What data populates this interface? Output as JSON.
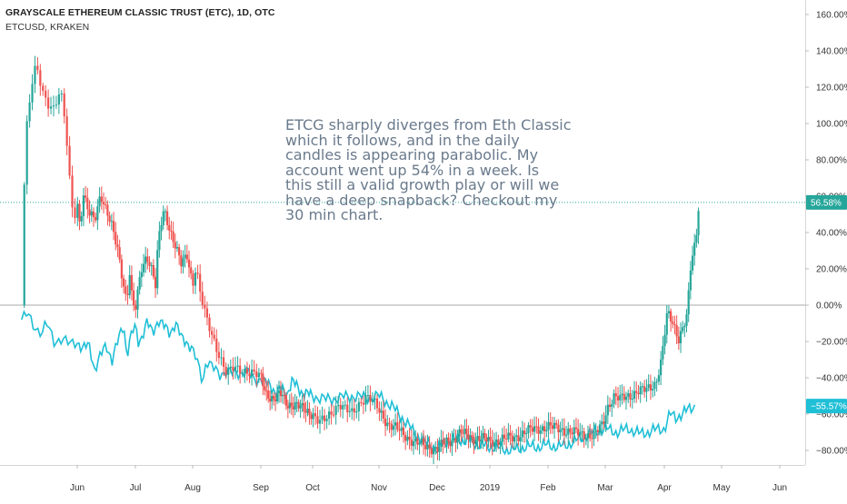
{
  "header": {
    "title": "GRAYSCALE ETHEREUM CLASSIC TRUST (ETC), 1D, OTC",
    "subtitle": "ETCUSD, KRAKEN"
  },
  "annotation": {
    "lines": [
      "ETCG sharply diverges from Eth Classic",
      "which it follows, and in the daily",
      "candles is appearing parabolic. My",
      "account went up 54% in a week. Is",
      "this still a valid growth play or will we",
      "have a deep snapback? Checkout my",
      "30 min chart."
    ]
  },
  "colors": {
    "up": "#26a69a",
    "down": "#ef5350",
    "comparison": "#1fbfd6",
    "text": "#333333",
    "grid": "#e6e6e6"
  },
  "chart_data": {
    "type": "candlestick",
    "series": [
      {
        "name": "GRAYSCALE ETHEREUM CLASSIC TRUST (ETC)",
        "style": "candles",
        "last_value_label": "56.58%"
      },
      {
        "name": "ETCUSD, KRAKEN",
        "style": "line",
        "last_value_label": "−55.57%"
      }
    ],
    "y_axis": {
      "unit": "%",
      "range": [
        -92,
        164
      ],
      "tick_labels": [
        "160.00%",
        "140.00%",
        "120.00%",
        "100.00%",
        "80.00%",
        "60.00%",
        "40.00%",
        "20.00%",
        "0.00%",
        "−20.00%",
        "−40.00%",
        "−60.00%",
        "−80.00%"
      ],
      "tick_values": [
        160,
        140,
        120,
        100,
        80,
        60,
        40,
        20,
        0,
        -20,
        -40,
        -60,
        -80
      ],
      "zero_line": true
    },
    "x_axis": {
      "labels": [
        "Jun",
        "Jul",
        "Aug",
        "Sep",
        "Oct",
        "Nov",
        "Dec",
        "2019",
        "Feb",
        "Mar",
        "Apr",
        "May",
        "Jun"
      ],
      "label_month_index": [
        1,
        2,
        3,
        4,
        5,
        6,
        7,
        8,
        9,
        10,
        11,
        12,
        13
      ],
      "start_month_index": 0.28,
      "end_month_index": 13.0
    },
    "grid": false,
    "price_line": 56.58,
    "etcg_path": [
      [
        0.28,
        0
      ],
      [
        0.3,
        50
      ],
      [
        0.34,
        95
      ],
      [
        0.4,
        118
      ],
      [
        0.47,
        132
      ],
      [
        0.55,
        118
      ],
      [
        0.62,
        112
      ],
      [
        0.7,
        108
      ],
      [
        0.78,
        118
      ],
      [
        0.85,
        98
      ],
      [
        0.9,
        70
      ],
      [
        0.95,
        47
      ],
      [
        1.0,
        58
      ],
      [
        1.05,
        42
      ],
      [
        1.1,
        62
      ],
      [
        1.15,
        55
      ],
      [
        1.2,
        50
      ],
      [
        1.3,
        47
      ],
      [
        1.4,
        62
      ],
      [
        1.5,
        52
      ],
      [
        1.6,
        42
      ],
      [
        1.7,
        30
      ],
      [
        1.78,
        15
      ],
      [
        1.85,
        2
      ],
      [
        1.9,
        18
      ],
      [
        1.95,
        0
      ],
      [
        2.0,
        -3
      ],
      [
        2.1,
        20
      ],
      [
        2.2,
        28
      ],
      [
        2.3,
        18
      ],
      [
        2.35,
        10
      ],
      [
        2.4,
        35
      ],
      [
        2.45,
        45
      ],
      [
        2.5,
        53
      ],
      [
        2.55,
        48
      ],
      [
        2.6,
        42
      ],
      [
        2.7,
        32
      ],
      [
        2.8,
        22
      ],
      [
        2.9,
        28
      ],
      [
        3.0,
        12
      ],
      [
        3.05,
        22
      ],
      [
        3.1,
        8
      ],
      [
        3.2,
        -8
      ],
      [
        3.3,
        -18
      ],
      [
        3.4,
        -28
      ],
      [
        3.5,
        -38
      ],
      [
        3.6,
        -35
      ],
      [
        3.8,
        -36
      ],
      [
        4.0,
        -40
      ],
      [
        4.1,
        -48
      ],
      [
        4.25,
        -52
      ],
      [
        4.4,
        -49
      ],
      [
        4.5,
        -54
      ],
      [
        4.65,
        -55
      ],
      [
        4.8,
        -57
      ],
      [
        4.9,
        -58
      ],
      [
        5.0,
        -60
      ],
      [
        5.1,
        -65
      ],
      [
        5.2,
        -63
      ],
      [
        5.3,
        -58
      ],
      [
        5.4,
        -54
      ],
      [
        5.5,
        -58
      ],
      [
        5.6,
        -60
      ],
      [
        5.7,
        -54
      ],
      [
        5.8,
        -50
      ],
      [
        5.9,
        -53
      ],
      [
        6.0,
        -58
      ],
      [
        6.15,
        -65
      ],
      [
        6.3,
        -68
      ],
      [
        6.45,
        -72
      ],
      [
        6.6,
        -75
      ],
      [
        6.8,
        -78
      ],
      [
        7.0,
        -79
      ],
      [
        7.15,
        -76
      ],
      [
        7.3,
        -74
      ],
      [
        7.45,
        -70
      ],
      [
        7.55,
        -72
      ],
      [
        7.7,
        -73
      ],
      [
        7.9,
        -74
      ],
      [
        8.0,
        -75
      ],
      [
        8.2,
        -74
      ],
      [
        8.4,
        -73
      ],
      [
        8.6,
        -70
      ],
      [
        8.8,
        -68
      ],
      [
        9.0,
        -67
      ],
      [
        9.2,
        -68
      ],
      [
        9.4,
        -70
      ],
      [
        9.6,
        -71
      ],
      [
        9.8,
        -72
      ],
      [
        9.95,
        -66
      ],
      [
        10.05,
        -55
      ],
      [
        10.15,
        -50
      ],
      [
        10.25,
        -52
      ],
      [
        10.4,
        -50
      ],
      [
        10.55,
        -47
      ],
      [
        10.7,
        -47
      ],
      [
        10.85,
        -43
      ],
      [
        10.95,
        -30
      ],
      [
        11.05,
        -5
      ],
      [
        11.15,
        -10
      ],
      [
        11.25,
        -18
      ],
      [
        11.32,
        -12
      ],
      [
        11.4,
        -6
      ],
      [
        11.45,
        18
      ],
      [
        11.5,
        28
      ],
      [
        11.55,
        35
      ],
      [
        11.6,
        56
      ]
    ],
    "etcusd_path": [
      [
        0.28,
        -8
      ],
      [
        0.35,
        -5
      ],
      [
        0.45,
        -12
      ],
      [
        0.55,
        -15
      ],
      [
        0.6,
        -10
      ],
      [
        0.7,
        -20
      ],
      [
        0.8,
        -18
      ],
      [
        0.9,
        -22
      ],
      [
        1.0,
        -20
      ],
      [
        1.1,
        -24
      ],
      [
        1.2,
        -22
      ],
      [
        1.3,
        -35
      ],
      [
        1.4,
        -28
      ],
      [
        1.5,
        -22
      ],
      [
        1.6,
        -30
      ],
      [
        1.7,
        -20
      ],
      [
        1.75,
        -15
      ],
      [
        1.8,
        -10
      ],
      [
        1.85,
        -28
      ],
      [
        1.9,
        -20
      ],
      [
        1.95,
        -15
      ],
      [
        2.0,
        -12
      ],
      [
        2.05,
        -20
      ],
      [
        2.1,
        -18
      ],
      [
        2.2,
        -10
      ],
      [
        2.3,
        -15
      ],
      [
        2.4,
        -8
      ],
      [
        2.5,
        -12
      ],
      [
        2.6,
        -15
      ],
      [
        2.7,
        -10
      ],
      [
        2.8,
        -18
      ],
      [
        2.9,
        -20
      ],
      [
        3.0,
        -25
      ],
      [
        3.1,
        -35
      ],
      [
        3.15,
        -42
      ],
      [
        3.2,
        -30
      ],
      [
        3.3,
        -35
      ],
      [
        3.4,
        -38
      ],
      [
        3.5,
        -36
      ],
      [
        3.6,
        -38
      ],
      [
        3.8,
        -36
      ],
      [
        3.9,
        -42
      ],
      [
        4.0,
        -40
      ],
      [
        4.1,
        -43
      ],
      [
        4.2,
        -45
      ],
      [
        4.3,
        -48
      ],
      [
        4.4,
        -46
      ],
      [
        4.5,
        -49
      ],
      [
        4.6,
        -42
      ],
      [
        4.7,
        -45
      ],
      [
        4.8,
        -48
      ],
      [
        5.0,
        -50
      ],
      [
        5.2,
        -52
      ],
      [
        5.4,
        -51
      ],
      [
        5.6,
        -50
      ],
      [
        5.8,
        -51
      ],
      [
        6.0,
        -50
      ],
      [
        6.2,
        -55
      ],
      [
        6.4,
        -62
      ],
      [
        6.6,
        -70
      ],
      [
        6.8,
        -76
      ],
      [
        7.0,
        -79
      ],
      [
        7.2,
        -75
      ],
      [
        7.4,
        -74
      ],
      [
        7.6,
        -75
      ],
      [
        7.8,
        -77
      ],
      [
        8.0,
        -78
      ],
      [
        8.2,
        -79
      ],
      [
        8.4,
        -80
      ],
      [
        8.6,
        -78
      ],
      [
        8.8,
        -78
      ],
      [
        9.0,
        -77
      ],
      [
        9.2,
        -78
      ],
      [
        9.4,
        -76
      ],
      [
        9.6,
        -73
      ],
      [
        9.8,
        -70
      ],
      [
        10.0,
        -68
      ],
      [
        10.2,
        -70
      ],
      [
        10.4,
        -68
      ],
      [
        10.6,
        -71
      ],
      [
        10.8,
        -69
      ],
      [
        11.0,
        -68
      ],
      [
        11.1,
        -60
      ],
      [
        11.2,
        -62
      ],
      [
        11.3,
        -60
      ],
      [
        11.45,
        -57
      ],
      [
        11.55,
        -55
      ]
    ]
  }
}
